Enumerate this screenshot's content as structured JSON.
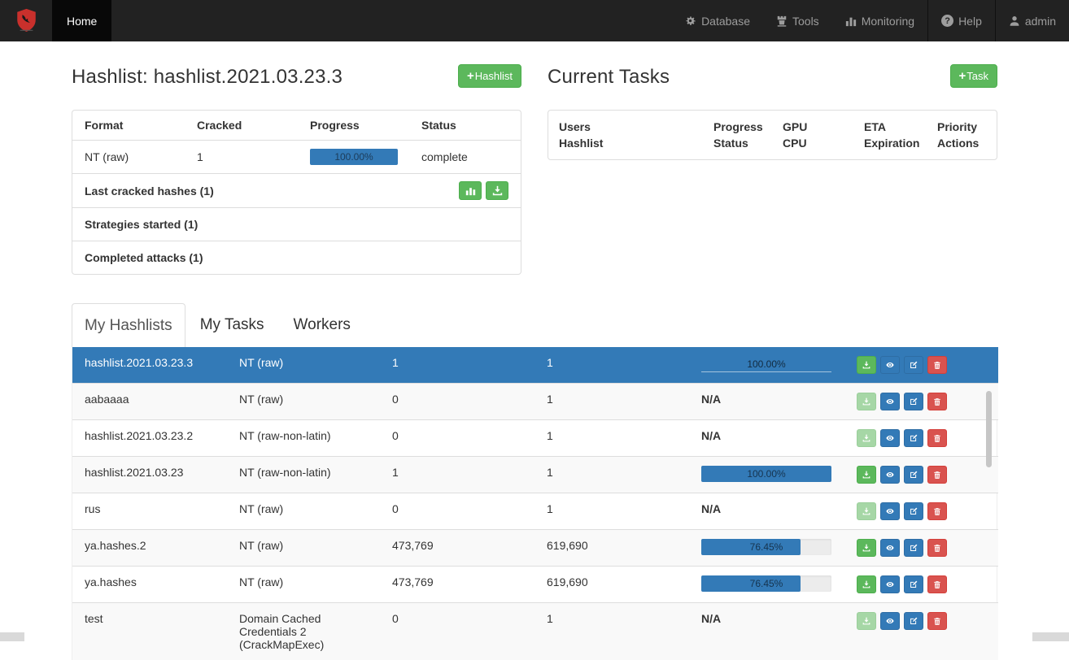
{
  "icons": {
    "plus": "+"
  },
  "colors": {
    "navbar_bg": "#222222",
    "accent_green": "#5cb85c",
    "accent_blue": "#337ab7",
    "accent_red": "#d9534f",
    "selected_row": "#337ab7"
  },
  "navbar": {
    "brand_icon": "shield-logo",
    "home": {
      "label": "Home",
      "active": true
    },
    "items_right": [
      {
        "label": "Database",
        "icon": "gear-icon"
      },
      {
        "label": "Tools",
        "icon": "tower-icon"
      },
      {
        "label": "Monitoring",
        "icon": "stats-icon"
      },
      {
        "label": "Help",
        "icon": "question-icon"
      },
      {
        "label": "admin",
        "icon": "user-icon"
      }
    ]
  },
  "hashlist_panel": {
    "title": "Hashlist: hashlist.2021.03.23.3",
    "new_button_label": "Hashlist",
    "table": {
      "headers": [
        "Format",
        "Cracked",
        "Progress",
        "Status"
      ],
      "row": {
        "format": "NT (raw)",
        "cracked": "1",
        "progress": "100.00%",
        "progress_value": 100,
        "status": "complete"
      }
    },
    "sections": [
      {
        "label": "Last cracked hashes (1)",
        "actions": [
          "stats-icon",
          "download-icon"
        ]
      },
      {
        "label": "Strategies started (1)"
      },
      {
        "label": "Completed attacks (1)"
      }
    ]
  },
  "tasks_panel": {
    "title": "Current Tasks",
    "new_button_label": "Task",
    "headers": [
      {
        "line1": "Users",
        "line2": "Hashlist"
      },
      {
        "line1": "Progress",
        "line2": "Status"
      },
      {
        "line1": "GPU",
        "line2": "CPU"
      },
      {
        "line1": "ETA",
        "line2": "Expiration"
      },
      {
        "line1": "Priority",
        "line2": "Actions"
      }
    ]
  },
  "tabs": [
    {
      "label": "My Hashlists",
      "active": true
    },
    {
      "label": "My Tasks",
      "active": false
    },
    {
      "label": "Workers",
      "active": false
    }
  ],
  "hashlists_table": {
    "na_label": "N/A",
    "rows": [
      {
        "name": "hashlist.2021.03.23.3",
        "format": "NT (raw)",
        "cracked": "1",
        "total": "1",
        "progress": "100.00%",
        "progress_value": 100,
        "selected": true,
        "download_enabled": true
      },
      {
        "name": "aabaaaa",
        "format": "NT (raw)",
        "cracked": "0",
        "total": "1",
        "progress": "N/A",
        "progress_value": 0,
        "selected": false,
        "download_enabled": false
      },
      {
        "name": "hashlist.2021.03.23.2",
        "format": "NT (raw-non-latin)",
        "cracked": "0",
        "total": "1",
        "progress": "N/A",
        "progress_value": 0,
        "selected": false,
        "download_enabled": false
      },
      {
        "name": "hashlist.2021.03.23",
        "format": "NT (raw-non-latin)",
        "cracked": "1",
        "total": "1",
        "progress": "100.00%",
        "progress_value": 100,
        "selected": false,
        "download_enabled": true
      },
      {
        "name": "rus",
        "format": "NT (raw)",
        "cracked": "0",
        "total": "1",
        "progress": "N/A",
        "progress_value": 0,
        "selected": false,
        "download_enabled": false
      },
      {
        "name": "ya.hashes.2",
        "format": "NT (raw)",
        "cracked": "473,769",
        "total": "619,690",
        "progress": "76.45%",
        "progress_value": 76.45,
        "selected": false,
        "download_enabled": true
      },
      {
        "name": "ya.hashes",
        "format": "NT (raw)",
        "cracked": "473,769",
        "total": "619,690",
        "progress": "76.45%",
        "progress_value": 76.45,
        "selected": false,
        "download_enabled": true
      },
      {
        "name": "test",
        "format": "Domain Cached Credentials 2 (CrackMapExec)",
        "cracked": "0",
        "total": "1",
        "progress": "N/A",
        "progress_value": 0,
        "selected": false,
        "download_enabled": false
      }
    ]
  }
}
